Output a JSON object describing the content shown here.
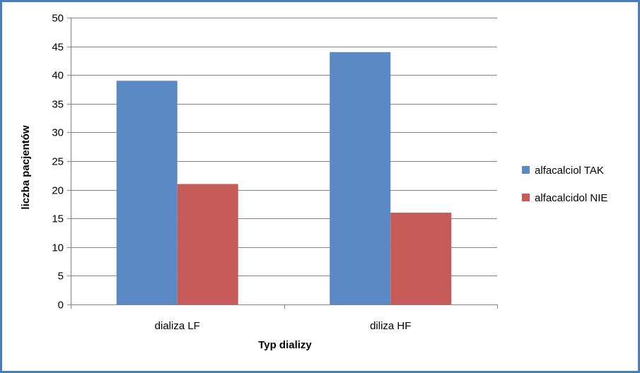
{
  "chart_data": {
    "type": "bar",
    "title": "",
    "xlabel": "Typ dializy",
    "ylabel": "liczba pacjentów",
    "categories": [
      "dializa LF",
      "diliza HF"
    ],
    "series": [
      {
        "name": "alfacalciol TAK",
        "values": [
          39,
          44
        ],
        "color": "#5b89c4"
      },
      {
        "name": "alfacalcidol NIE",
        "values": [
          21,
          16
        ],
        "color": "#c65b57"
      }
    ],
    "ylim": [
      0,
      50
    ],
    "yticks": [
      0,
      5,
      10,
      15,
      20,
      25,
      30,
      35,
      40,
      45,
      50
    ],
    "grid": true,
    "legend_position": "right"
  },
  "colors": {
    "border": "#4a7ebb",
    "gridline": "#858585",
    "axis": "#858585"
  }
}
